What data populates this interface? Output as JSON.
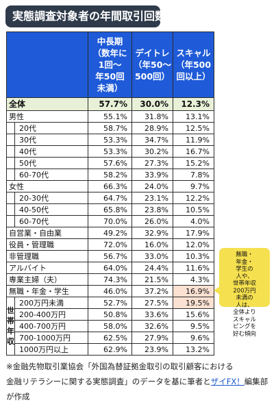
{
  "title": "実態調査対象者の年間取引回数",
  "headers": [
    "中長期（数年に1回〜年50回未満）",
    "デイトレ（年50〜500回）",
    "スキャル（年500回以上）"
  ],
  "header_lines": [
    [
      "中長期",
      "（数年に",
      "1回〜",
      "年50回",
      "未満）"
    ],
    [
      "デイトレ",
      "（年50〜",
      "500回）"
    ],
    [
      "スキャル",
      "（年500",
      "回以上）"
    ]
  ],
  "total": {
    "label": "全体",
    "values": [
      "57.7%",
      "30.0%",
      "12.3%"
    ]
  },
  "gender_group": [
    {
      "label": "男性",
      "values": [
        "55.1%",
        "31.8%",
        "13.1%"
      ],
      "sub": [
        {
          "label": "20代",
          "values": [
            "58.7%",
            "28.9%",
            "12.5%"
          ]
        },
        {
          "label": "30代",
          "values": [
            "53.3%",
            "34.7%",
            "11.9%"
          ]
        },
        {
          "label": "40代",
          "values": [
            "53.3%",
            "30.2%",
            "16.7%"
          ]
        },
        {
          "label": "50代",
          "values": [
            "57.6%",
            "27.3%",
            "15.2%"
          ]
        },
        {
          "label": "60-70代",
          "values": [
            "58.2%",
            "33.9%",
            "7.8%"
          ]
        }
      ]
    },
    {
      "label": "女性",
      "values": [
        "66.3%",
        "24.0%",
        "9.7%"
      ],
      "sub": [
        {
          "label": "20-30代",
          "values": [
            "64.7%",
            "23.1%",
            "12.2%"
          ]
        },
        {
          "label": "40-50代",
          "values": [
            "65.8%",
            "23.8%",
            "10.5%"
          ]
        },
        {
          "label": "60-70代",
          "values": [
            "70.0%",
            "26.0%",
            "4.0%"
          ]
        }
      ]
    }
  ],
  "occupations": [
    {
      "label": "自営業・自由業",
      "values": [
        "49.2%",
        "32.9%",
        "17.9%"
      ]
    },
    {
      "label": "役員・管理職",
      "values": [
        "72.0%",
        "16.0%",
        "12.0%"
      ]
    },
    {
      "label": "非管理職",
      "values": [
        "56.7%",
        "33.0%",
        "10.3%"
      ]
    },
    {
      "label": "アルバイト",
      "values": [
        "64.0%",
        "24.4%",
        "11.6%"
      ]
    },
    {
      "label": "専業主婦（夫）",
      "values": [
        "74.3%",
        "21.5%",
        "4.3%"
      ]
    },
    {
      "label": "無職・年金・学生",
      "values": [
        "46.0%",
        "37.2%",
        "16.9%"
      ]
    }
  ],
  "income_group_label": "世帯年収",
  "income_group_chars": [
    "世",
    "帯",
    "年",
    "収"
  ],
  "income": [
    {
      "label": "200万円未満",
      "values": [
        "52.7%",
        "27.5%",
        "19.5%"
      ]
    },
    {
      "label": "200-400万円",
      "values": [
        "50.8%",
        "33.6%",
        "15.6%"
      ]
    },
    {
      "label": "400-700万円",
      "values": [
        "58.0%",
        "32.6%",
        "9.5%"
      ]
    },
    {
      "label": "700-1000万円",
      "values": [
        "62.5%",
        "27.9%",
        "9.6%"
      ]
    },
    {
      "label": "1000万円以上",
      "values": [
        "62.9%",
        "23.9%",
        "13.2%"
      ]
    }
  ],
  "highlight_color": "#fbe1d2",
  "header_color": "#1f5bd8",
  "total_row_color": "#e8f1d8",
  "callout_color": "#f5e04f",
  "callout_lines": [
    "無職・",
    "年金・",
    "学生の",
    "人や、",
    "世帯年収",
    "200万円",
    "未満の",
    "人は、",
    "全体より",
    "スキャル",
    "ピングを",
    "好む傾向"
  ],
  "footnote_lines": [
    "※金融先物取引業協会「外国為替証拠金取引の取引顧客における",
    "金融リテラシーに関する実態調査」のデータを基に筆者と"
  ],
  "footnote_link": "ザイFX！",
  "footnote_tail": "編集部が作成"
}
